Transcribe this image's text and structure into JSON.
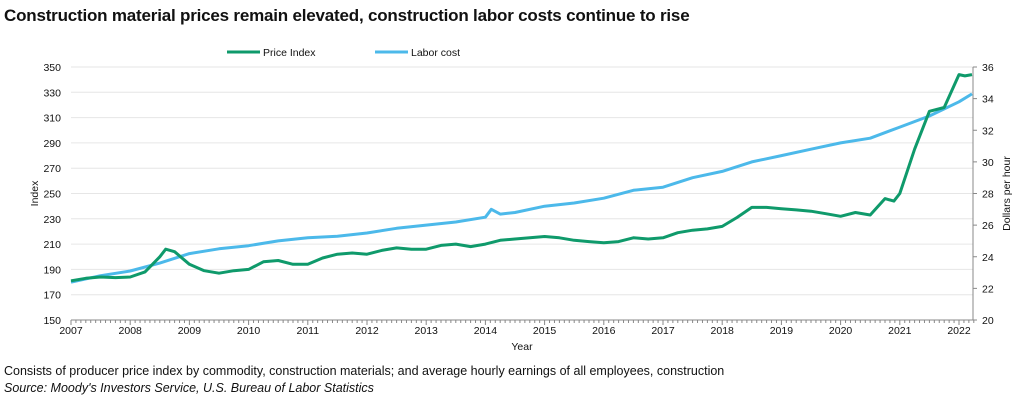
{
  "title": "Construction material prices remain elevated, construction labor costs continue to rise",
  "footnote": "Consists of producer price index by commodity, construction materials; and average hourly earnings of all employees, construction",
  "source": "Source: Moody's Investors Service, U.S. Bureau of Labor Statistics",
  "chart_data": {
    "type": "line",
    "xlabel": "Year",
    "ylabel": "Index",
    "y2label": "Dollars per hour",
    "xlim": [
      2007,
      2022.25
    ],
    "ylim": [
      150,
      350
    ],
    "y2lim": [
      20,
      36
    ],
    "xticks": [
      "2007",
      "2008",
      "2009",
      "2010",
      "2011",
      "2012",
      "2013",
      "2014",
      "2015",
      "2016",
      "2017",
      "2018",
      "2019",
      "2020",
      "2021",
      "2022"
    ],
    "yticks": [
      150,
      170,
      190,
      210,
      230,
      250,
      270,
      290,
      310,
      330,
      350
    ],
    "y2ticks": [
      20,
      22,
      24,
      26,
      28,
      30,
      32,
      34,
      36
    ],
    "grid": true,
    "legend_position": "top",
    "series": [
      {
        "name": "Price Index",
        "axis": "left",
        "color": "#0f9a6b",
        "x": [
          2007,
          2007.25,
          2007.5,
          2007.75,
          2008,
          2008.25,
          2008.5,
          2008.6,
          2008.75,
          2009,
          2009.25,
          2009.5,
          2009.75,
          2010,
          2010.25,
          2010.5,
          2010.75,
          2011,
          2011.25,
          2011.5,
          2011.75,
          2012,
          2012.25,
          2012.5,
          2012.75,
          2013,
          2013.25,
          2013.5,
          2013.75,
          2014,
          2014.25,
          2014.5,
          2014.75,
          2015,
          2015.25,
          2015.5,
          2015.75,
          2016,
          2016.25,
          2016.5,
          2016.75,
          2017,
          2017.25,
          2017.5,
          2017.75,
          2018,
          2018.25,
          2018.5,
          2018.75,
          2019,
          2019.25,
          2019.5,
          2019.75,
          2020,
          2020.25,
          2020.5,
          2020.75,
          2020.9,
          2021,
          2021.25,
          2021.5,
          2021.75,
          2022,
          2022.1,
          2022.22
        ],
        "values": [
          181,
          183,
          184,
          183.5,
          184,
          188,
          200,
          206,
          204,
          194,
          189,
          187,
          189,
          190,
          196,
          197,
          194,
          194,
          199,
          202,
          203,
          202,
          205,
          207,
          206,
          206,
          209,
          210,
          208,
          210,
          213,
          214,
          215,
          216,
          215,
          213,
          212,
          211,
          212,
          215,
          214,
          215,
          219,
          221,
          222,
          224,
          231,
          239,
          239,
          238,
          237,
          236,
          234,
          232,
          235,
          233,
          246,
          244,
          250,
          285,
          315,
          318,
          344,
          343,
          344
        ]
      },
      {
        "name": "Labor cost",
        "axis": "right",
        "color": "#4cb9ea",
        "x": [
          2007,
          2007.5,
          2008,
          2008.5,
          2009,
          2009.5,
          2010,
          2010.5,
          2011,
          2011.5,
          2012,
          2012.5,
          2013,
          2013.5,
          2014,
          2014.1,
          2014.25,
          2014.5,
          2015,
          2015.5,
          2016,
          2016.5,
          2017,
          2017.5,
          2018,
          2018.5,
          2019,
          2019.5,
          2020,
          2020.5,
          2021,
          2021.5,
          2022,
          2022.22
        ],
        "values": [
          22.4,
          22.8,
          23.1,
          23.6,
          24.2,
          24.5,
          24.7,
          25.0,
          25.2,
          25.3,
          25.5,
          25.8,
          26.0,
          26.2,
          26.5,
          27.0,
          26.7,
          26.8,
          27.2,
          27.4,
          27.7,
          28.2,
          28.4,
          29.0,
          29.4,
          30.0,
          30.4,
          30.8,
          31.2,
          31.5,
          32.2,
          32.9,
          33.8,
          34.3
        ]
      }
    ]
  }
}
